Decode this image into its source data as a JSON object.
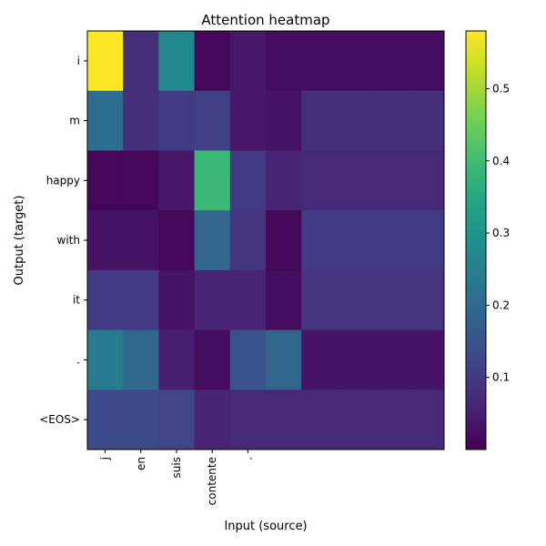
{
  "chart_data": {
    "type": "heatmap",
    "title": "Attention heatmap",
    "xlabel": "Input (source)",
    "ylabel": "Output (target)",
    "x_tick_labels": [
      "j",
      "en",
      "suis",
      "contente",
      "."
    ],
    "y_tick_labels": [
      "i",
      "m",
      "happy",
      "with",
      "it",
      ".",
      "<EOS>"
    ],
    "num_columns": 10,
    "colormap": "viridis",
    "colorbar": {
      "min": 0.0,
      "max": 0.58,
      "ticks": [
        0.1,
        0.2,
        0.3,
        0.4,
        0.5
      ],
      "tick_labels": [
        "0.1",
        "0.2",
        "0.3",
        "0.4",
        "0.5"
      ]
    },
    "values": [
      [
        0.58,
        0.08,
        0.27,
        0.01,
        0.04,
        0.02,
        0.02,
        0.02,
        0.02,
        0.02
      ],
      [
        0.21,
        0.08,
        0.1,
        0.11,
        0.04,
        0.03,
        0.08,
        0.08,
        0.08,
        0.08
      ],
      [
        0.01,
        0.01,
        0.04,
        0.39,
        0.1,
        0.06,
        0.07,
        0.07,
        0.07,
        0.07
      ],
      [
        0.03,
        0.03,
        0.01,
        0.19,
        0.09,
        0.01,
        0.1,
        0.1,
        0.1,
        0.1
      ],
      [
        0.1,
        0.1,
        0.03,
        0.06,
        0.06,
        0.02,
        0.09,
        0.09,
        0.09,
        0.09
      ],
      [
        0.24,
        0.2,
        0.05,
        0.02,
        0.15,
        0.19,
        0.03,
        0.03,
        0.03,
        0.03
      ],
      [
        0.13,
        0.13,
        0.12,
        0.06,
        0.07,
        0.07,
        0.07,
        0.07,
        0.07,
        0.07
      ]
    ]
  }
}
